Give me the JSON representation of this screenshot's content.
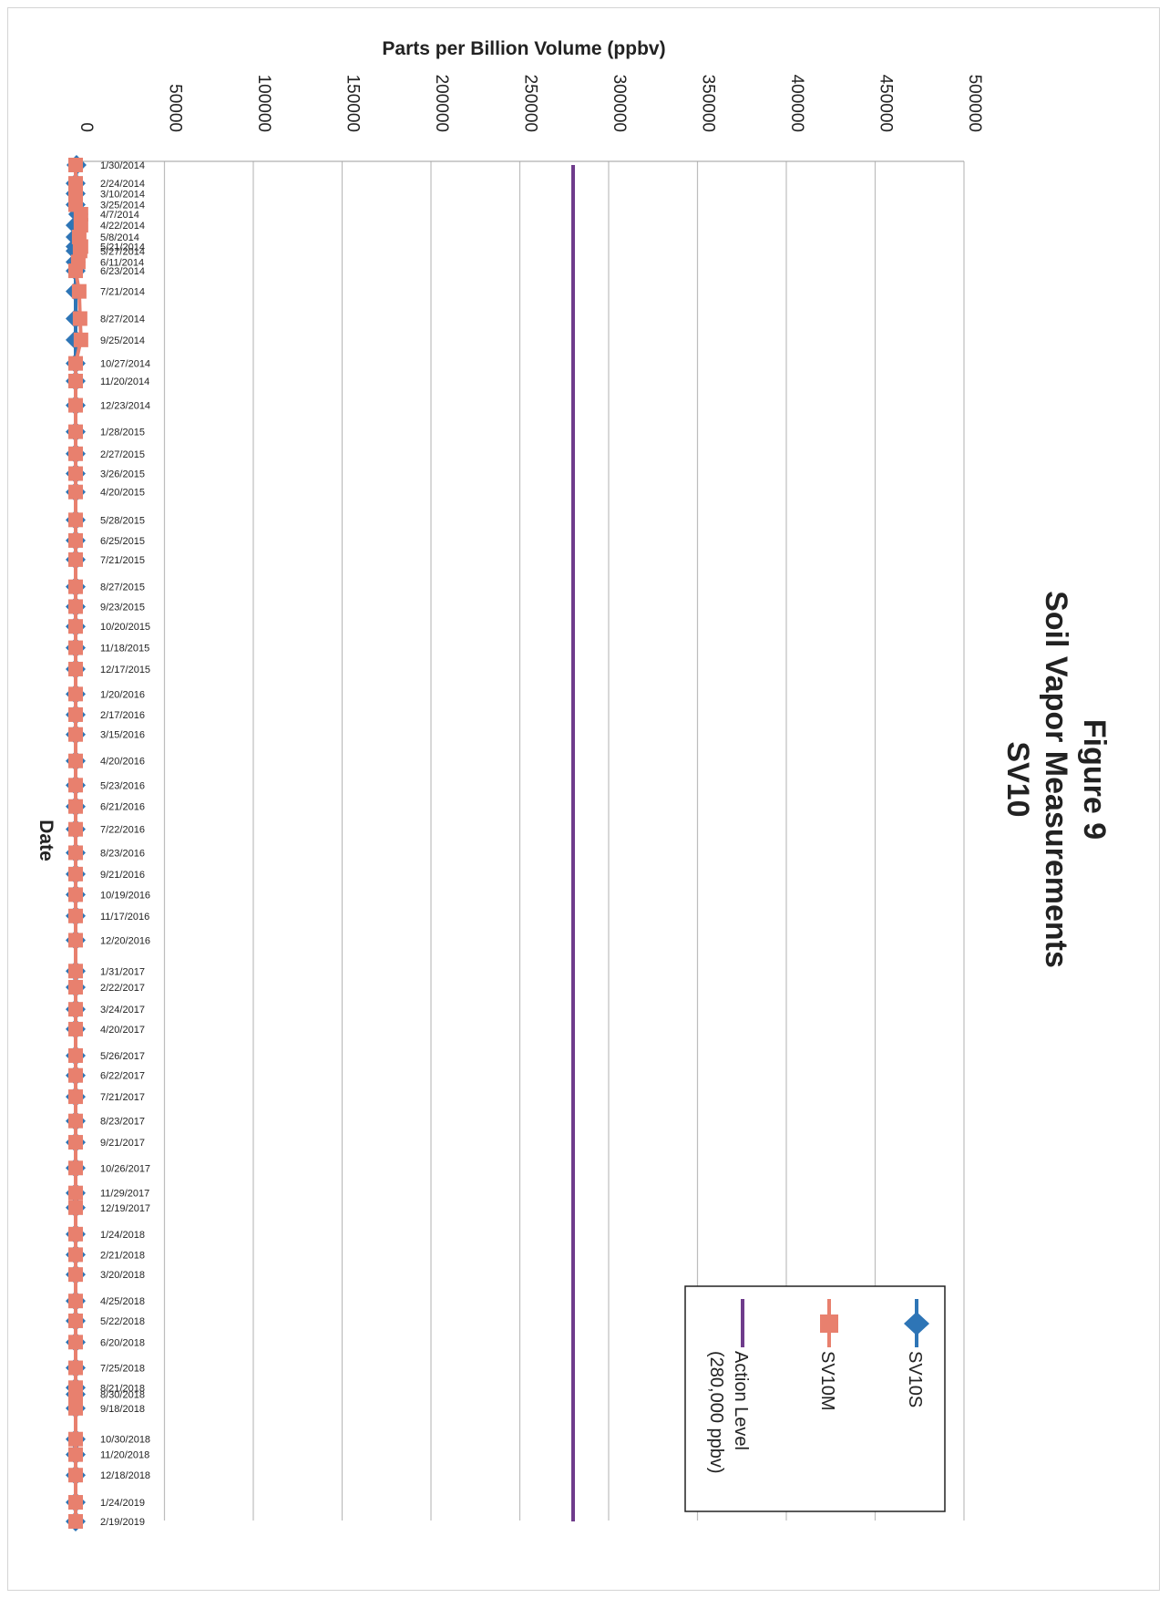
{
  "chart_data": {
    "type": "line",
    "orientation": "rotated 90 degrees clockwise (dates run top to bottom, values increase to the right)",
    "title": [
      "Figure 9",
      "Soil Vapor Measurements",
      "SV10"
    ],
    "xlabel": "Date",
    "ylabel": "Parts per Billion Volume (ppbv)",
    "ylim": [
      0,
      500000
    ],
    "yticks": [
      "0",
      "50000",
      "100000",
      "150000",
      "200000",
      "250000",
      "300000",
      "350000",
      "400000",
      "450000",
      "500000"
    ],
    "grid": true,
    "legend_position": "bottom-right",
    "categories": [
      "1/30/2014",
      "2/24/2014",
      "3/10/2014",
      "3/25/2014",
      "4/7/2014",
      "4/22/2014",
      "5/8/2014",
      "5/21/2014",
      "5/27/2014",
      "6/11/2014",
      "6/23/2014",
      "7/21/2014",
      "8/27/2014",
      "9/25/2014",
      "10/27/2014",
      "11/20/2014",
      "12/23/2014",
      "1/28/2015",
      "2/27/2015",
      "3/26/2015",
      "4/20/2015",
      "5/28/2015",
      "6/25/2015",
      "7/21/2015",
      "8/27/2015",
      "9/23/2015",
      "10/20/2015",
      "11/18/2015",
      "12/17/2015",
      "1/20/2016",
      "2/17/2016",
      "3/15/2016",
      "4/20/2016",
      "5/23/2016",
      "6/21/2016",
      "7/22/2016",
      "8/23/2016",
      "9/21/2016",
      "10/19/2016",
      "11/17/2016",
      "12/20/2016",
      "1/31/2017",
      "2/22/2017",
      "3/24/2017",
      "4/20/2017",
      "5/26/2017",
      "6/22/2017",
      "7/21/2017",
      "8/23/2017",
      "9/21/2017",
      "10/26/2017",
      "11/29/2017",
      "12/19/2017",
      "1/24/2018",
      "2/21/2018",
      "3/20/2018",
      "4/25/2018",
      "5/22/2018",
      "6/20/2018",
      "7/25/2018",
      "8/21/2018",
      "8/30/2018",
      "9/18/2018",
      "10/30/2018",
      "11/20/2018",
      "12/18/2018",
      "1/24/2019",
      "2/19/2019"
    ],
    "series": [
      {
        "name": "SV10S",
        "color": "#2e75b6",
        "marker": "diamond",
        "values": [
          500,
          0,
          0,
          0,
          1500,
          0,
          0,
          0,
          0,
          0,
          0,
          0,
          0,
          0,
          0,
          0,
          0,
          0,
          0,
          0,
          0,
          0,
          0,
          0,
          0,
          0,
          0,
          0,
          0,
          0,
          0,
          0,
          0,
          0,
          0,
          0,
          0,
          0,
          0,
          0,
          0,
          0,
          0,
          0,
          0,
          0,
          0,
          0,
          0,
          0,
          0,
          0,
          0,
          0,
          0,
          0,
          0,
          0,
          0,
          0,
          0,
          0,
          0,
          0,
          0,
          0,
          0,
          0
        ]
      },
      {
        "name": "SV10M",
        "color": "#e8806e",
        "marker": "square",
        "values": [
          0,
          0,
          0,
          0,
          3000,
          3000,
          2000,
          3000,
          2500,
          1500,
          0,
          2000,
          2500,
          3000,
          0,
          0,
          0,
          0,
          0,
          0,
          0,
          0,
          0,
          0,
          0,
          0,
          0,
          0,
          0,
          0,
          0,
          0,
          0,
          0,
          0,
          0,
          0,
          0,
          0,
          0,
          0,
          0,
          0,
          0,
          0,
          0,
          0,
          0,
          0,
          0,
          0,
          0,
          0,
          0,
          0,
          0,
          0,
          0,
          0,
          0,
          0,
          0,
          0,
          0,
          0,
          0,
          0,
          0
        ]
      },
      {
        "name": "Action Level (280,000 ppbv)",
        "legend_lines": [
          "Action Level",
          "(280,000 ppbv)"
        ],
        "color": "#6f3c8c",
        "marker": "none",
        "value": 280000
      }
    ]
  }
}
